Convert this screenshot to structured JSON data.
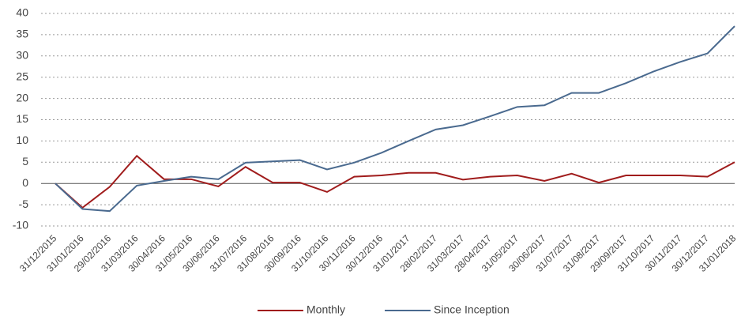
{
  "chart_data": {
    "type": "line",
    "categories": [
      "31/12/2015",
      "31/01/2016",
      "29/02/2016",
      "31/03/2016",
      "30/04/2016",
      "31/05/2016",
      "30/06/2016",
      "31/07/2016",
      "31/08/2016",
      "30/09/2016",
      "31/10/2016",
      "30/11/2016",
      "30/12/2016",
      "31/01/2017",
      "28/02/2017",
      "31/03/2017",
      "28/04/2017",
      "31/05/2017",
      "30/06/2017",
      "31/07/2017",
      "31/08/2017",
      "29/09/2017",
      "31/10/2017",
      "30/11/2017",
      "30/12/2017",
      "31/01/2018"
    ],
    "series": [
      {
        "name": "Monthly",
        "color": "#a01c1c",
        "values": [
          0,
          -5.7,
          -0.8,
          6.5,
          1,
          1,
          -0.7,
          3.9,
          0.2,
          0.2,
          -2.0,
          1.6,
          1.9,
          2.5,
          2.5,
          0.9,
          1.6,
          1.9,
          0.6,
          2.3,
          0.2,
          1.9,
          1.9,
          1.9,
          1.6,
          5.0
        ]
      },
      {
        "name": "Since Inception",
        "color": "#4a6a8f",
        "values": [
          0,
          -6,
          -6.5,
          -0.5,
          0.6,
          1.6,
          1.0,
          4.9,
          5.2,
          5.5,
          3.3,
          4.9,
          7.2,
          10.0,
          12.7,
          13.7,
          15.8,
          18.0,
          18.4,
          21.3,
          21.3,
          23.6,
          26.3,
          28.6,
          30.6,
          37.0
        ]
      }
    ],
    "ylim": [
      -10,
      40
    ],
    "yticks": [
      -10,
      -5,
      0,
      5,
      10,
      15,
      20,
      25,
      30,
      35,
      40
    ],
    "grid": true,
    "legend": "bottom"
  }
}
